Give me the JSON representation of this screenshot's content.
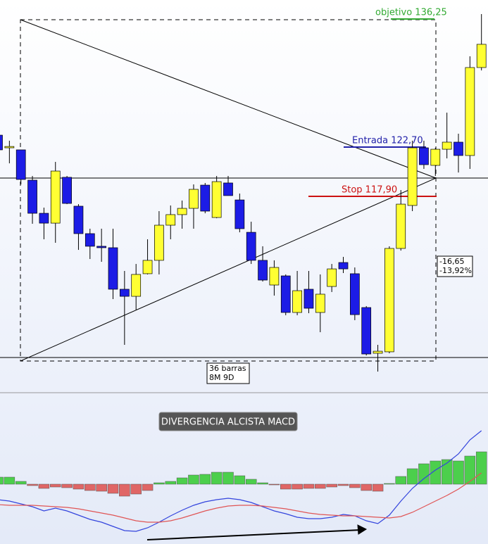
{
  "chart_data": [
    {
      "type": "candlestick",
      "open": [
        123.85,
        122.62,
        122.42,
        119.47,
        116.25,
        115.29,
        119.75,
        116.94,
        114.27,
        113.04,
        112.9,
        108.86,
        108.17,
        110.37,
        111.67,
        115.09,
        116.12,
        116.73,
        118.99,
        115.84,
        119.2,
        117.55,
        114.4,
        111.67,
        109.27,
        110.16,
        106.6,
        108.86,
        106.6,
        109.13,
        111.46,
        110.37,
        107.08,
        102.63,
        102.77,
        112.83,
        117.01,
        122.62,
        120.91,
        122.48,
        123.17,
        121.87,
        130.43
      ],
      "high": [
        124.33,
        123.31,
        122.42,
        119.88,
        116.8,
        121.25,
        119.88,
        117.14,
        114.75,
        114.75,
        114.75,
        110.64,
        111.32,
        113.72,
        116.46,
        117.01,
        117.49,
        119.06,
        119.2,
        119.88,
        119.88,
        118.17,
        115.43,
        113.04,
        111.67,
        110.3,
        110.64,
        110.64,
        110.3,
        111.32,
        112.01,
        110.98,
        107.22,
        103.45,
        113.04,
        118.51,
        123.31,
        123.31,
        122.62,
        126.04,
        123.99,
        131.52,
        135.63
      ],
      "low": [
        121.94,
        121.11,
        119.06,
        115.23,
        113.72,
        113.38,
        117.14,
        112.69,
        111.8,
        111.53,
        107.9,
        103.45,
        106.87,
        110.3,
        110.3,
        113.72,
        114.75,
        114.75,
        116.25,
        115.77,
        117.97,
        114.4,
        111.32,
        109.61,
        108.24,
        106.33,
        106.33,
        106.53,
        104.68,
        108.59,
        110.43,
        105.85,
        102.42,
        100.85,
        102.63,
        112.62,
        116.46,
        120.57,
        119.88,
        121.59,
        120.22,
        120.57,
        130.15
      ],
      "close": [
        122.42,
        122.75,
        119.54,
        116.25,
        115.29,
        120.36,
        117.21,
        114.27,
        113.04,
        112.9,
        108.86,
        108.17,
        110.3,
        111.67,
        115.09,
        116.12,
        116.73,
        118.58,
        116.46,
        119.33,
        117.97,
        114.75,
        111.67,
        109.75,
        110.98,
        106.6,
        108.72,
        107.01,
        108.38,
        110.84,
        110.84,
        106.39,
        102.56,
        102.83,
        112.83,
        117.14,
        122.62,
        120.98,
        122.48,
        123.17,
        121.87,
        130.43,
        132.69
      ],
      "up_color": "#ffff33",
      "down_color": "#1c1ce6",
      "ylim": [
        99,
        137
      ],
      "annotations": {
        "target": "objetivo 136,25",
        "entry": "Entrada 122,70",
        "stop": "Stop 117,90",
        "change": "-16,65",
        "change_pct": "-13,92%",
        "bars": "36 barras",
        "duration": "8M 9D"
      }
    },
    {
      "type": "macd",
      "title": "DIVERGENCIA ALCISTA MACD",
      "histogram": [
        1.0,
        1.0,
        0.4,
        -0.2,
        -0.6,
        -0.4,
        -0.5,
        -0.7,
        -0.9,
        -1.0,
        -1.3,
        -1.7,
        -1.4,
        -0.9,
        0.2,
        0.4,
        0.9,
        1.3,
        1.4,
        1.7,
        1.7,
        1.2,
        0.7,
        0.2,
        -0.1,
        -0.7,
        -0.7,
        -0.6,
        -0.6,
        -0.4,
        -0.2,
        -0.5,
        -0.9,
        -1.0,
        0.1,
        1.1,
        2.2,
        2.9,
        3.3,
        3.5,
        3.3,
        4.0,
        4.6
      ],
      "macd": [
        -2.2,
        -2.4,
        -2.8,
        -3.2,
        -3.8,
        -3.4,
        -3.8,
        -4.4,
        -5.0,
        -5.4,
        -6.0,
        -6.6,
        -6.7,
        -6.2,
        -5.4,
        -4.5,
        -3.7,
        -3.0,
        -2.5,
        -2.2,
        -2.0,
        -2.2,
        -2.6,
        -3.2,
        -3.8,
        -4.2,
        -4.7,
        -4.9,
        -4.9,
        -4.7,
        -4.3,
        -4.5,
        -5.2,
        -5.6,
        -4.4,
        -2.4,
        -0.6,
        0.8,
        2.0,
        3.0,
        4.3,
        6.3,
        7.6
      ],
      "signal": [
        -2.9,
        -3.0,
        -3.0,
        -3.0,
        -3.1,
        -3.2,
        -3.3,
        -3.5,
        -3.8,
        -4.1,
        -4.4,
        -4.8,
        -5.2,
        -5.4,
        -5.4,
        -5.2,
        -4.8,
        -4.3,
        -3.8,
        -3.4,
        -3.1,
        -3.0,
        -3.0,
        -3.1,
        -3.3,
        -3.5,
        -3.8,
        -4.1,
        -4.3,
        -4.4,
        -4.5,
        -4.5,
        -4.6,
        -4.7,
        -4.8,
        -4.6,
        -4.0,
        -3.2,
        -2.4,
        -1.6,
        -0.7,
        0.4,
        1.6
      ],
      "pos_color": "#4ccf4c",
      "neg_color": "#e06666",
      "macd_color": "#3344dd",
      "signal_color": "#e05555",
      "ylim": [
        -8.5,
        12.8
      ]
    }
  ]
}
